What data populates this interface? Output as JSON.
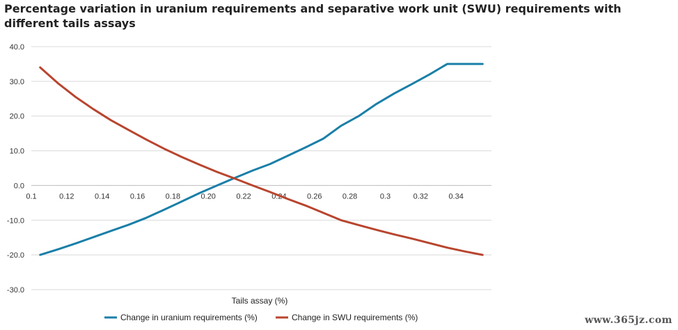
{
  "chart_data": {
    "type": "line",
    "title": "Percentage variation in uranium requirements and separative work unit (SWU) requirements with different tails assays",
    "xlabel": "Tails assay (%)",
    "ylabel": "",
    "xlim": [
      0.1,
      0.36
    ],
    "ylim": [
      -30,
      40
    ],
    "x_ticks": [
      "0.1",
      "0.12",
      "0.14",
      "0.16",
      "0.18",
      "0.20",
      "0.22",
      "0.24",
      "0.26",
      "0.28",
      "0.3",
      "0.32",
      "0.34"
    ],
    "y_ticks": [
      "40.0",
      "30.0",
      "20.0",
      "10.0",
      "0.0",
      "-10.0",
      "-20.0",
      "-30.0"
    ],
    "grid": "horizontal",
    "legend_position": "bottom",
    "series": [
      {
        "name": "Change in uranium requirements (%)",
        "color": "#1a7fa8",
        "x": [
          0.105,
          0.115,
          0.125,
          0.135,
          0.145,
          0.155,
          0.165,
          0.175,
          0.185,
          0.195,
          0.205,
          0.215,
          0.225,
          0.235,
          0.245,
          0.255,
          0.265,
          0.275,
          0.285,
          0.295,
          0.305,
          0.315,
          0.325,
          0.335,
          0.345,
          0.355
        ],
        "values": [
          -20.0,
          -18.4,
          -16.7,
          -14.9,
          -13.1,
          -11.3,
          -9.3,
          -7.0,
          -4.6,
          -2.2,
          0.0,
          2.2,
          4.3,
          6.2,
          8.6,
          11.0,
          13.5,
          17.2,
          20.0,
          23.5,
          26.5,
          29.2,
          32.0,
          35.0,
          35.0,
          35.0
        ]
      },
      {
        "name": "Change in SWU requirements (%)",
        "color": "#b8452e",
        "x": [
          0.105,
          0.115,
          0.125,
          0.135,
          0.145,
          0.155,
          0.165,
          0.175,
          0.185,
          0.195,
          0.205,
          0.215,
          0.225,
          0.235,
          0.245,
          0.255,
          0.265,
          0.275,
          0.285,
          0.295,
          0.305,
          0.315,
          0.325,
          0.335,
          0.345,
          0.355
        ],
        "values": [
          34.0,
          29.5,
          25.5,
          22.0,
          18.8,
          16.0,
          13.2,
          10.6,
          8.2,
          6.0,
          3.9,
          2.0,
          0.0,
          -1.9,
          -3.9,
          -5.8,
          -7.9,
          -10.0,
          -11.4,
          -12.8,
          -14.1,
          -15.3,
          -16.6,
          -17.9,
          -19.0,
          -20.0
        ]
      }
    ]
  },
  "watermark": "www.365jz.com"
}
